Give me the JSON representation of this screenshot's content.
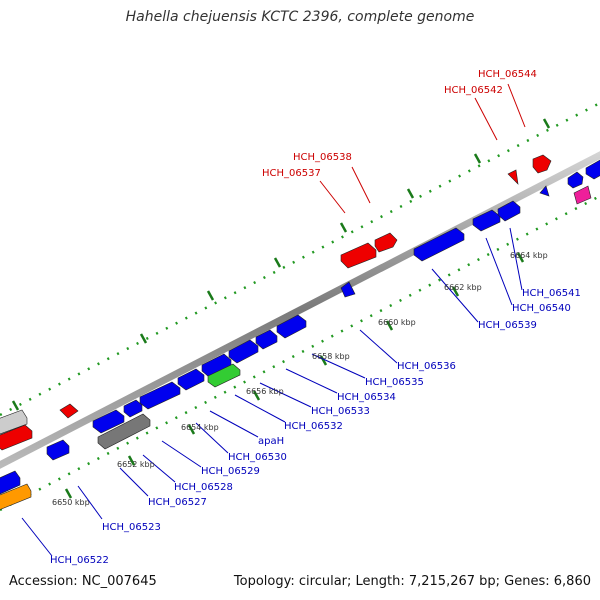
{
  "header": {
    "title": "Hahella chejuensis KCTC 2396, complete genome"
  },
  "footer": {
    "accession": "Accession: NC_007645",
    "stats": "Topology: circular; Length: 7,215,267 bp; Genes: 6,860"
  },
  "colors": {
    "forward": "#ee0000",
    "reverse": "#0000ee",
    "rna": "#33cc33",
    "pseudo": "#777777",
    "other_grey": "#cccccc",
    "orange": "#ff9900",
    "pink": "#ee1f9a",
    "top_label": "#cc0000",
    "bottom_label": "#0000bb"
  },
  "scale_labels": [
    "6650 kbp",
    "6652 kbp",
    "6654 kbp",
    "6656 kbp",
    "6658 kbp",
    "6660 kbp",
    "6662 kbp",
    "6664 kbp"
  ],
  "top_labels": [
    "HCH_06544",
    "HCH_06542",
    "HCH_06538",
    "HCH_06537"
  ],
  "bottom_labels": [
    "HCH_06522",
    "HCH_06523",
    "HCH_06527",
    "HCH_06528",
    "HCH_06529",
    "HCH_06530",
    "apaH",
    "HCH_06532",
    "HCH_06533",
    "HCH_06534",
    "HCH_06535",
    "HCH_06536",
    "HCH_06539",
    "HCH_06540",
    "HCH_06541"
  ]
}
